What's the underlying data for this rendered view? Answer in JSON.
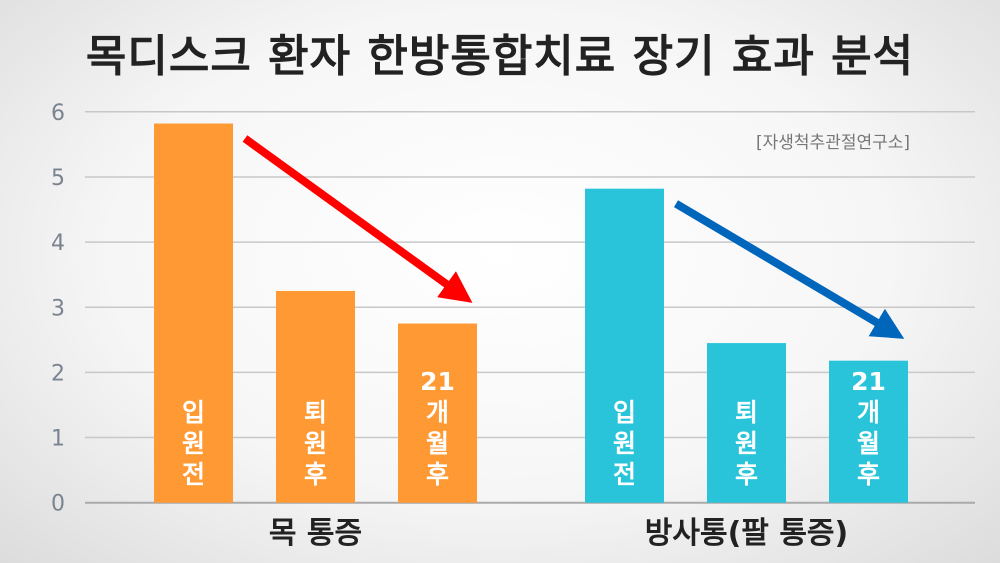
{
  "chart_data": {
    "type": "bar",
    "title": "목디스크 환자 한방통합치료 장기 효과 분석",
    "source": "[자생척추관절연구소]",
    "ylim": [
      0,
      6
    ],
    "yticks": [
      "0",
      "1",
      "2",
      "3",
      "4",
      "5",
      "6"
    ],
    "grid": true,
    "groups": [
      {
        "name": "목 통증",
        "color": "#FF9933",
        "arrow_color": "#FF0000",
        "bars": [
          {
            "label": "입원전",
            "value": 5.82
          },
          {
            "label": "퇴원후",
            "value": 3.25
          },
          {
            "label": "21개월후",
            "value": 2.75
          }
        ]
      },
      {
        "name": "방사통(팔 통증)",
        "color": "#29C4D9",
        "arrow_color": "#0066BB",
        "bars": [
          {
            "label": "입원전",
            "value": 4.82
          },
          {
            "label": "퇴원후",
            "value": 2.45
          },
          {
            "label": "21개월후",
            "value": 2.18
          }
        ]
      }
    ]
  }
}
